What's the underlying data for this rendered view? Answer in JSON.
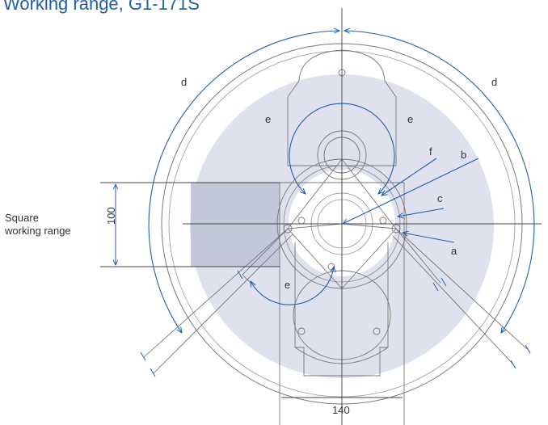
{
  "title": "Working range, G1-171S",
  "side_label": {
    "line1": "Square",
    "line2": "working range"
  },
  "dimensions": {
    "height": "100",
    "width": "140"
  },
  "letters": {
    "a": "a",
    "b": "b",
    "c": "c",
    "d": "d",
    "e": "e",
    "f": "f"
  },
  "colors": {
    "title": "#1f5fa8",
    "range_fill": "#dfe1ef",
    "square_fill": "#c2c8da",
    "arrow": "#1f5fa8",
    "line": "#555555"
  }
}
